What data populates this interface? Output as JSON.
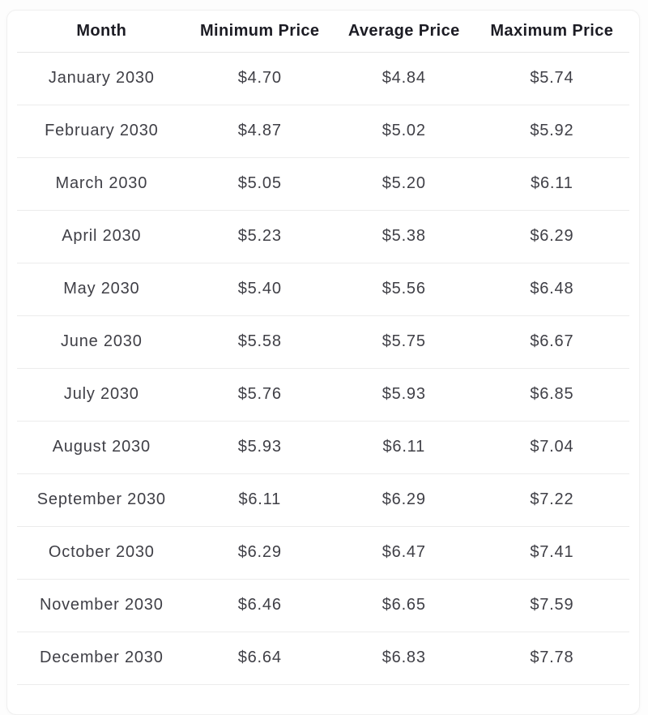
{
  "colors": {
    "page-bg": "#fdfdfd",
    "card-bg": "#ffffff",
    "card-border": "#f0f0f0",
    "divider": "#ececec",
    "header-divider": "#e6e6e6",
    "header-text": "#1c1c24",
    "body-text": "#3f3f46"
  },
  "table": {
    "columns": [
      "Month",
      "Minimum Price",
      "Average Price",
      "Maximum Price"
    ],
    "rows": [
      [
        "January 2030",
        "$4.70",
        "$4.84",
        "$5.74"
      ],
      [
        "February 2030",
        "$4.87",
        "$5.02",
        "$5.92"
      ],
      [
        "March 2030",
        "$5.05",
        "$5.20",
        "$6.11"
      ],
      [
        "April 2030",
        "$5.23",
        "$5.38",
        "$6.29"
      ],
      [
        "May 2030",
        "$5.40",
        "$5.56",
        "$6.48"
      ],
      [
        "June 2030",
        "$5.58",
        "$5.75",
        "$6.67"
      ],
      [
        "July 2030",
        "$5.76",
        "$5.93",
        "$6.85"
      ],
      [
        "August 2030",
        "$5.93",
        "$6.11",
        "$7.04"
      ],
      [
        "September 2030",
        "$6.11",
        "$6.29",
        "$7.22"
      ],
      [
        "October 2030",
        "$6.29",
        "$6.47",
        "$7.41"
      ],
      [
        "November 2030",
        "$6.46",
        "$6.65",
        "$7.59"
      ],
      [
        "December 2030",
        "$6.64",
        "$6.83",
        "$7.78"
      ]
    ]
  },
  "chart_data": {
    "type": "table",
    "categories": [
      "January 2030",
      "February 2030",
      "March 2030",
      "April 2030",
      "May 2030",
      "June 2030",
      "July 2030",
      "August 2030",
      "September 2030",
      "October 2030",
      "November 2030",
      "December 2030"
    ],
    "series": [
      {
        "name": "Minimum Price",
        "values": [
          4.7,
          4.87,
          5.05,
          5.23,
          5.4,
          5.58,
          5.76,
          5.93,
          6.11,
          6.29,
          6.46,
          6.64
        ]
      },
      {
        "name": "Average Price",
        "values": [
          4.84,
          5.02,
          5.2,
          5.38,
          5.56,
          5.75,
          5.93,
          6.11,
          6.29,
          6.47,
          6.65,
          6.83
        ]
      },
      {
        "name": "Maximum Price",
        "values": [
          5.74,
          5.92,
          6.11,
          6.29,
          6.48,
          6.67,
          6.85,
          7.04,
          7.22,
          7.41,
          7.59,
          7.78
        ]
      }
    ],
    "unit": "USD",
    "xlabel": "Month",
    "ylabel": "Price"
  }
}
